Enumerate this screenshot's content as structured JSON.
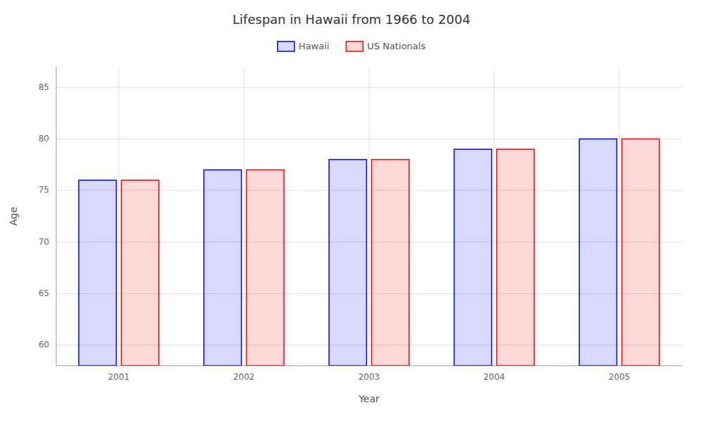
{
  "chart_data": {
    "type": "bar",
    "title": "Lifespan in Hawaii from 1966 to 2004",
    "x_label": "Year",
    "y_label": "Age",
    "categories": [
      "2001",
      "2002",
      "2003",
      "2004",
      "2005"
    ],
    "series": [
      {
        "name": "Hawaii",
        "color": "#0000ff",
        "values": [
          76,
          77,
          78,
          79,
          80
        ]
      },
      {
        "name": "US Nationals",
        "color": "#ff0000",
        "values": [
          76,
          77,
          78,
          79,
          80
        ]
      }
    ],
    "ylim": [
      58,
      87
    ],
    "yticks": [
      60,
      65,
      70,
      75,
      80,
      85
    ],
    "grid": true,
    "legend": "top"
  }
}
